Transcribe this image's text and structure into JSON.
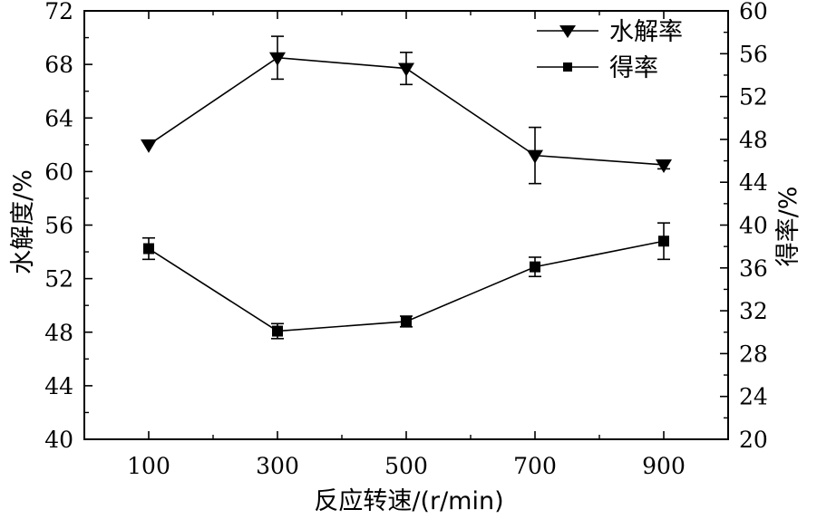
{
  "chart_data": {
    "type": "line",
    "x": [
      100,
      300,
      500,
      700,
      900
    ],
    "xlabel": "反应转速/(r/min)",
    "xlim": [
      0,
      1000
    ],
    "x_ticks": [
      "100",
      "300",
      "500",
      "700",
      "900"
    ],
    "y_left": {
      "label": "水解度/%",
      "lim": [
        40,
        72
      ],
      "ticks": [
        "40",
        "44",
        "48",
        "52",
        "56",
        "60",
        "64",
        "68",
        "72"
      ]
    },
    "y_right": {
      "label": "得率/%",
      "lim": [
        20,
        60
      ],
      "ticks": [
        "20",
        "24",
        "28",
        "32",
        "36",
        "40",
        "44",
        "48",
        "52",
        "56",
        "60"
      ]
    },
    "series": [
      {
        "name": "水解率",
        "axis": "left",
        "marker": "triangle-down",
        "values": [
          62.0,
          68.5,
          67.7,
          61.2,
          60.5
        ],
        "errors": [
          0.0,
          1.6,
          1.2,
          2.1,
          0.3
        ]
      },
      {
        "name": "得率",
        "axis": "right",
        "marker": "square",
        "values": [
          37.8,
          30.1,
          31.0,
          36.1,
          38.5
        ],
        "errors": [
          1.0,
          0.7,
          0.5,
          0.9,
          1.7
        ]
      }
    ],
    "legend_position": "top-right",
    "grid": false
  }
}
